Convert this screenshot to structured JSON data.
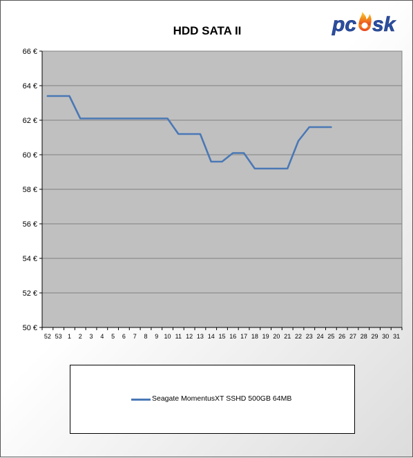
{
  "chart_data": {
    "type": "line",
    "title": "HDD SATA II",
    "xlabel": "",
    "ylabel": "",
    "categories": [
      "52",
      "53",
      "1",
      "2",
      "3",
      "4",
      "5",
      "6",
      "7",
      "8",
      "9",
      "10",
      "11",
      "12",
      "13",
      "14",
      "15",
      "16",
      "17",
      "18",
      "19",
      "20",
      "21",
      "22",
      "23",
      "24",
      "25",
      "26",
      "27",
      "28",
      "29",
      "30",
      "31"
    ],
    "ylim": [
      50,
      66
    ],
    "yticks": [
      50,
      52,
      54,
      56,
      58,
      60,
      62,
      64,
      66
    ],
    "ytick_labels": [
      "50 €",
      "52 €",
      "54 €",
      "56 €",
      "58 €",
      "60 €",
      "62 €",
      "64 €",
      "66 €"
    ],
    "grid": true,
    "legend_position": "bottom",
    "series": [
      {
        "name": "Seagate MomentusXT SSHD 500GB 64MB",
        "color": "#4a78b5",
        "values": [
          63.4,
          63.4,
          63.4,
          62.1,
          62.1,
          62.1,
          62.1,
          62.1,
          62.1,
          62.1,
          62.1,
          62.1,
          61.2,
          61.2,
          61.2,
          59.6,
          59.6,
          60.1,
          60.1,
          59.2,
          59.2,
          59.2,
          59.2,
          60.8,
          61.6,
          61.6,
          61.6,
          null,
          null,
          null,
          null,
          null,
          null
        ]
      }
    ]
  },
  "colors": {
    "plot_background": "#c0c0c0",
    "gridline": "#808080",
    "series": "#4a78b5"
  },
  "logo": {
    "text": "pcask",
    "icon": "flame-icon"
  }
}
